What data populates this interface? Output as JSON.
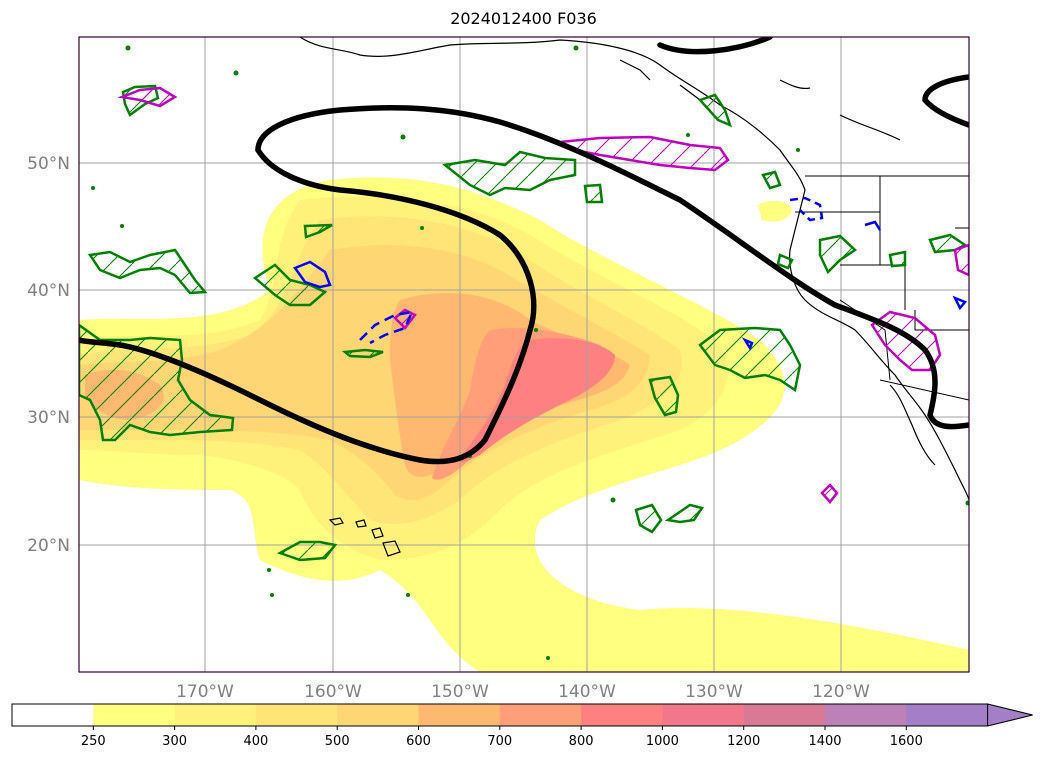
{
  "title": "2024012400 F036",
  "lat_labels": [
    "50°N",
    "40°N",
    "30°N",
    "20°N"
  ],
  "lon_labels": [
    "170°W",
    "160°W",
    "150°W",
    "140°W",
    "130°W",
    "120°W"
  ],
  "colorbar": {
    "ticks": [
      "250",
      "300",
      "400",
      "500",
      "600",
      "700",
      "800",
      "1000",
      "1200",
      "1400",
      "1600"
    ],
    "colors": [
      "#ffffff",
      "#ffff80",
      "#fff27a",
      "#ffe478",
      "#ffd673",
      "#ffb870",
      "#ff9e78",
      "#ff8080",
      "#f0788a",
      "#d87a96",
      "#bc82b8",
      "#a47fc8"
    ],
    "extend": "max"
  },
  "colors": {
    "jet_contour": "#000000",
    "green_contour": "#008000",
    "magenta_contour": "#c000c0",
    "blue_contour": "#0000ff",
    "map_border": "#330033"
  }
}
